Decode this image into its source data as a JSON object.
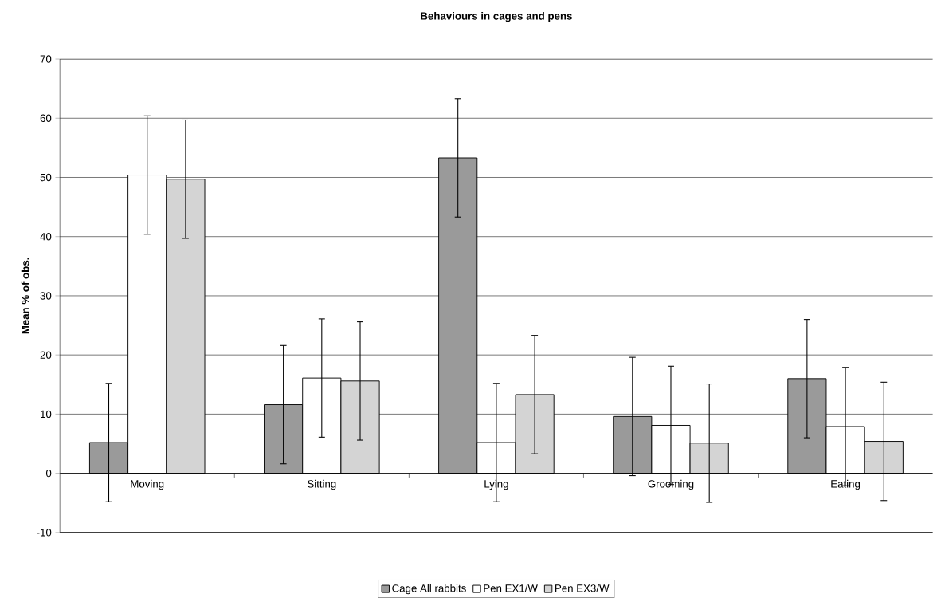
{
  "chart_data": {
    "type": "bar",
    "title": "Behaviours in cages and pens",
    "ylabel": "Mean % of obs.",
    "categories": [
      "Moving",
      "Sitting",
      "Lying",
      "Grooming",
      "Eating"
    ],
    "series": [
      {
        "name": "Cage All rabbits",
        "color": "#9a9a9a",
        "values": [
          5.2,
          11.6,
          53.3,
          9.6,
          16.0
        ],
        "errors": [
          10,
          10,
          10,
          10,
          10
        ]
      },
      {
        "name": "Pen EX1/W",
        "color": "#ffffff",
        "values": [
          50.4,
          16.1,
          5.2,
          8.1,
          7.9
        ],
        "errors": [
          10,
          10,
          10,
          10,
          10
        ]
      },
      {
        "name": "Pen EX3/W",
        "color": "#d4d4d4",
        "values": [
          49.7,
          15.6,
          13.3,
          5.1,
          5.4
        ],
        "errors": [
          10,
          10,
          10,
          10,
          10
        ]
      }
    ],
    "ylim": [
      -10,
      70
    ],
    "yticks": [
      -10,
      0,
      10,
      20,
      30,
      40,
      50,
      60,
      70
    ],
    "grid": "y",
    "legend": "bottom"
  }
}
